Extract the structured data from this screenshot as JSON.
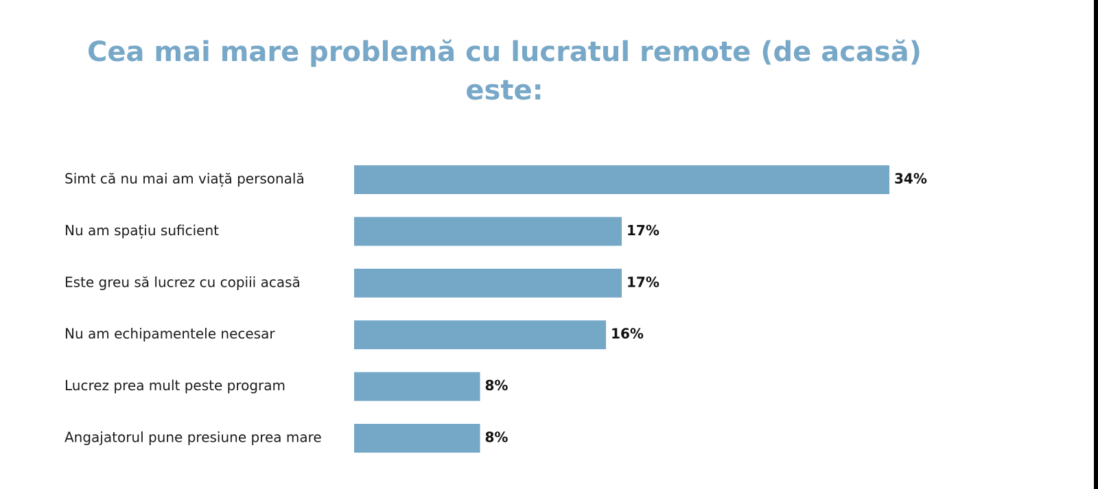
{
  "chart_data": {
    "type": "bar",
    "orientation": "horizontal",
    "title_lines": [
      "Cea mai mare problemă cu lucratul remote (de acasă)",
      "este:"
    ],
    "categories": [
      "Simt că nu mai am viață personală",
      "Nu am spațiu suficient",
      "Este greu să lucrez cu copiii acasă",
      "Nu am echipamentele necesar",
      "Lucrez prea mult peste program",
      "Angajatorul pune presiune prea mare"
    ],
    "values": [
      34,
      17,
      17,
      16,
      8,
      8
    ],
    "value_labels": [
      "34%",
      "17%",
      "17%",
      "16%",
      "8%",
      "8%"
    ],
    "unit": "%",
    "xlim": [
      0,
      34
    ],
    "grid": false,
    "legend": "none",
    "colors": {
      "bar": "#75a7c7",
      "title": "#78a8c8",
      "text": "#1a1a1a"
    }
  }
}
